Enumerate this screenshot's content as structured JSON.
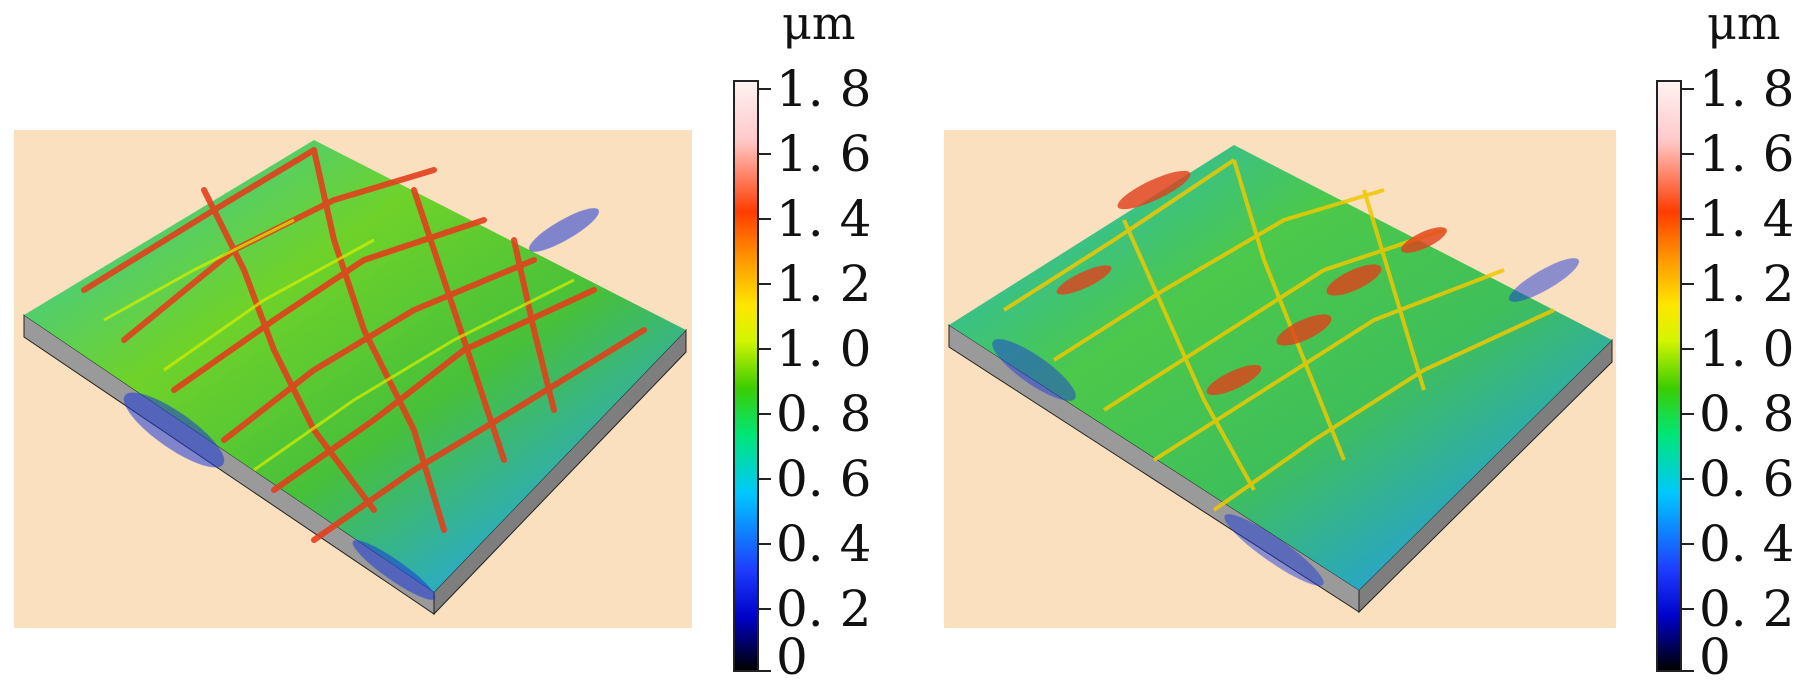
{
  "colorbars": [
    {
      "unit": "μm",
      "ticks": [
        "1. 8",
        "1. 6",
        "1. 4",
        "1. 2",
        "1. 0",
        "0. 8",
        "0. 6",
        "0. 4",
        "0. 2",
        "0"
      ]
    },
    {
      "unit": "μm",
      "ticks": [
        "1. 8",
        "1. 6",
        "1. 4",
        "1. 2",
        "1. 0",
        "0. 8",
        "0. 6",
        "0. 4",
        "0. 2",
        "0"
      ]
    }
  ],
  "colors": {
    "panel_background": "#fbe0c0",
    "base_side": "#9a9a9a",
    "colormap": [
      "#000000",
      "#0000c8",
      "#1e3cff",
      "#00c8ff",
      "#00e678",
      "#3ccd00",
      "#d2f500",
      "#ffe600",
      "#ff9600",
      "#ff3c00",
      "#ffc8c8",
      "#fff2f2"
    ]
  }
}
